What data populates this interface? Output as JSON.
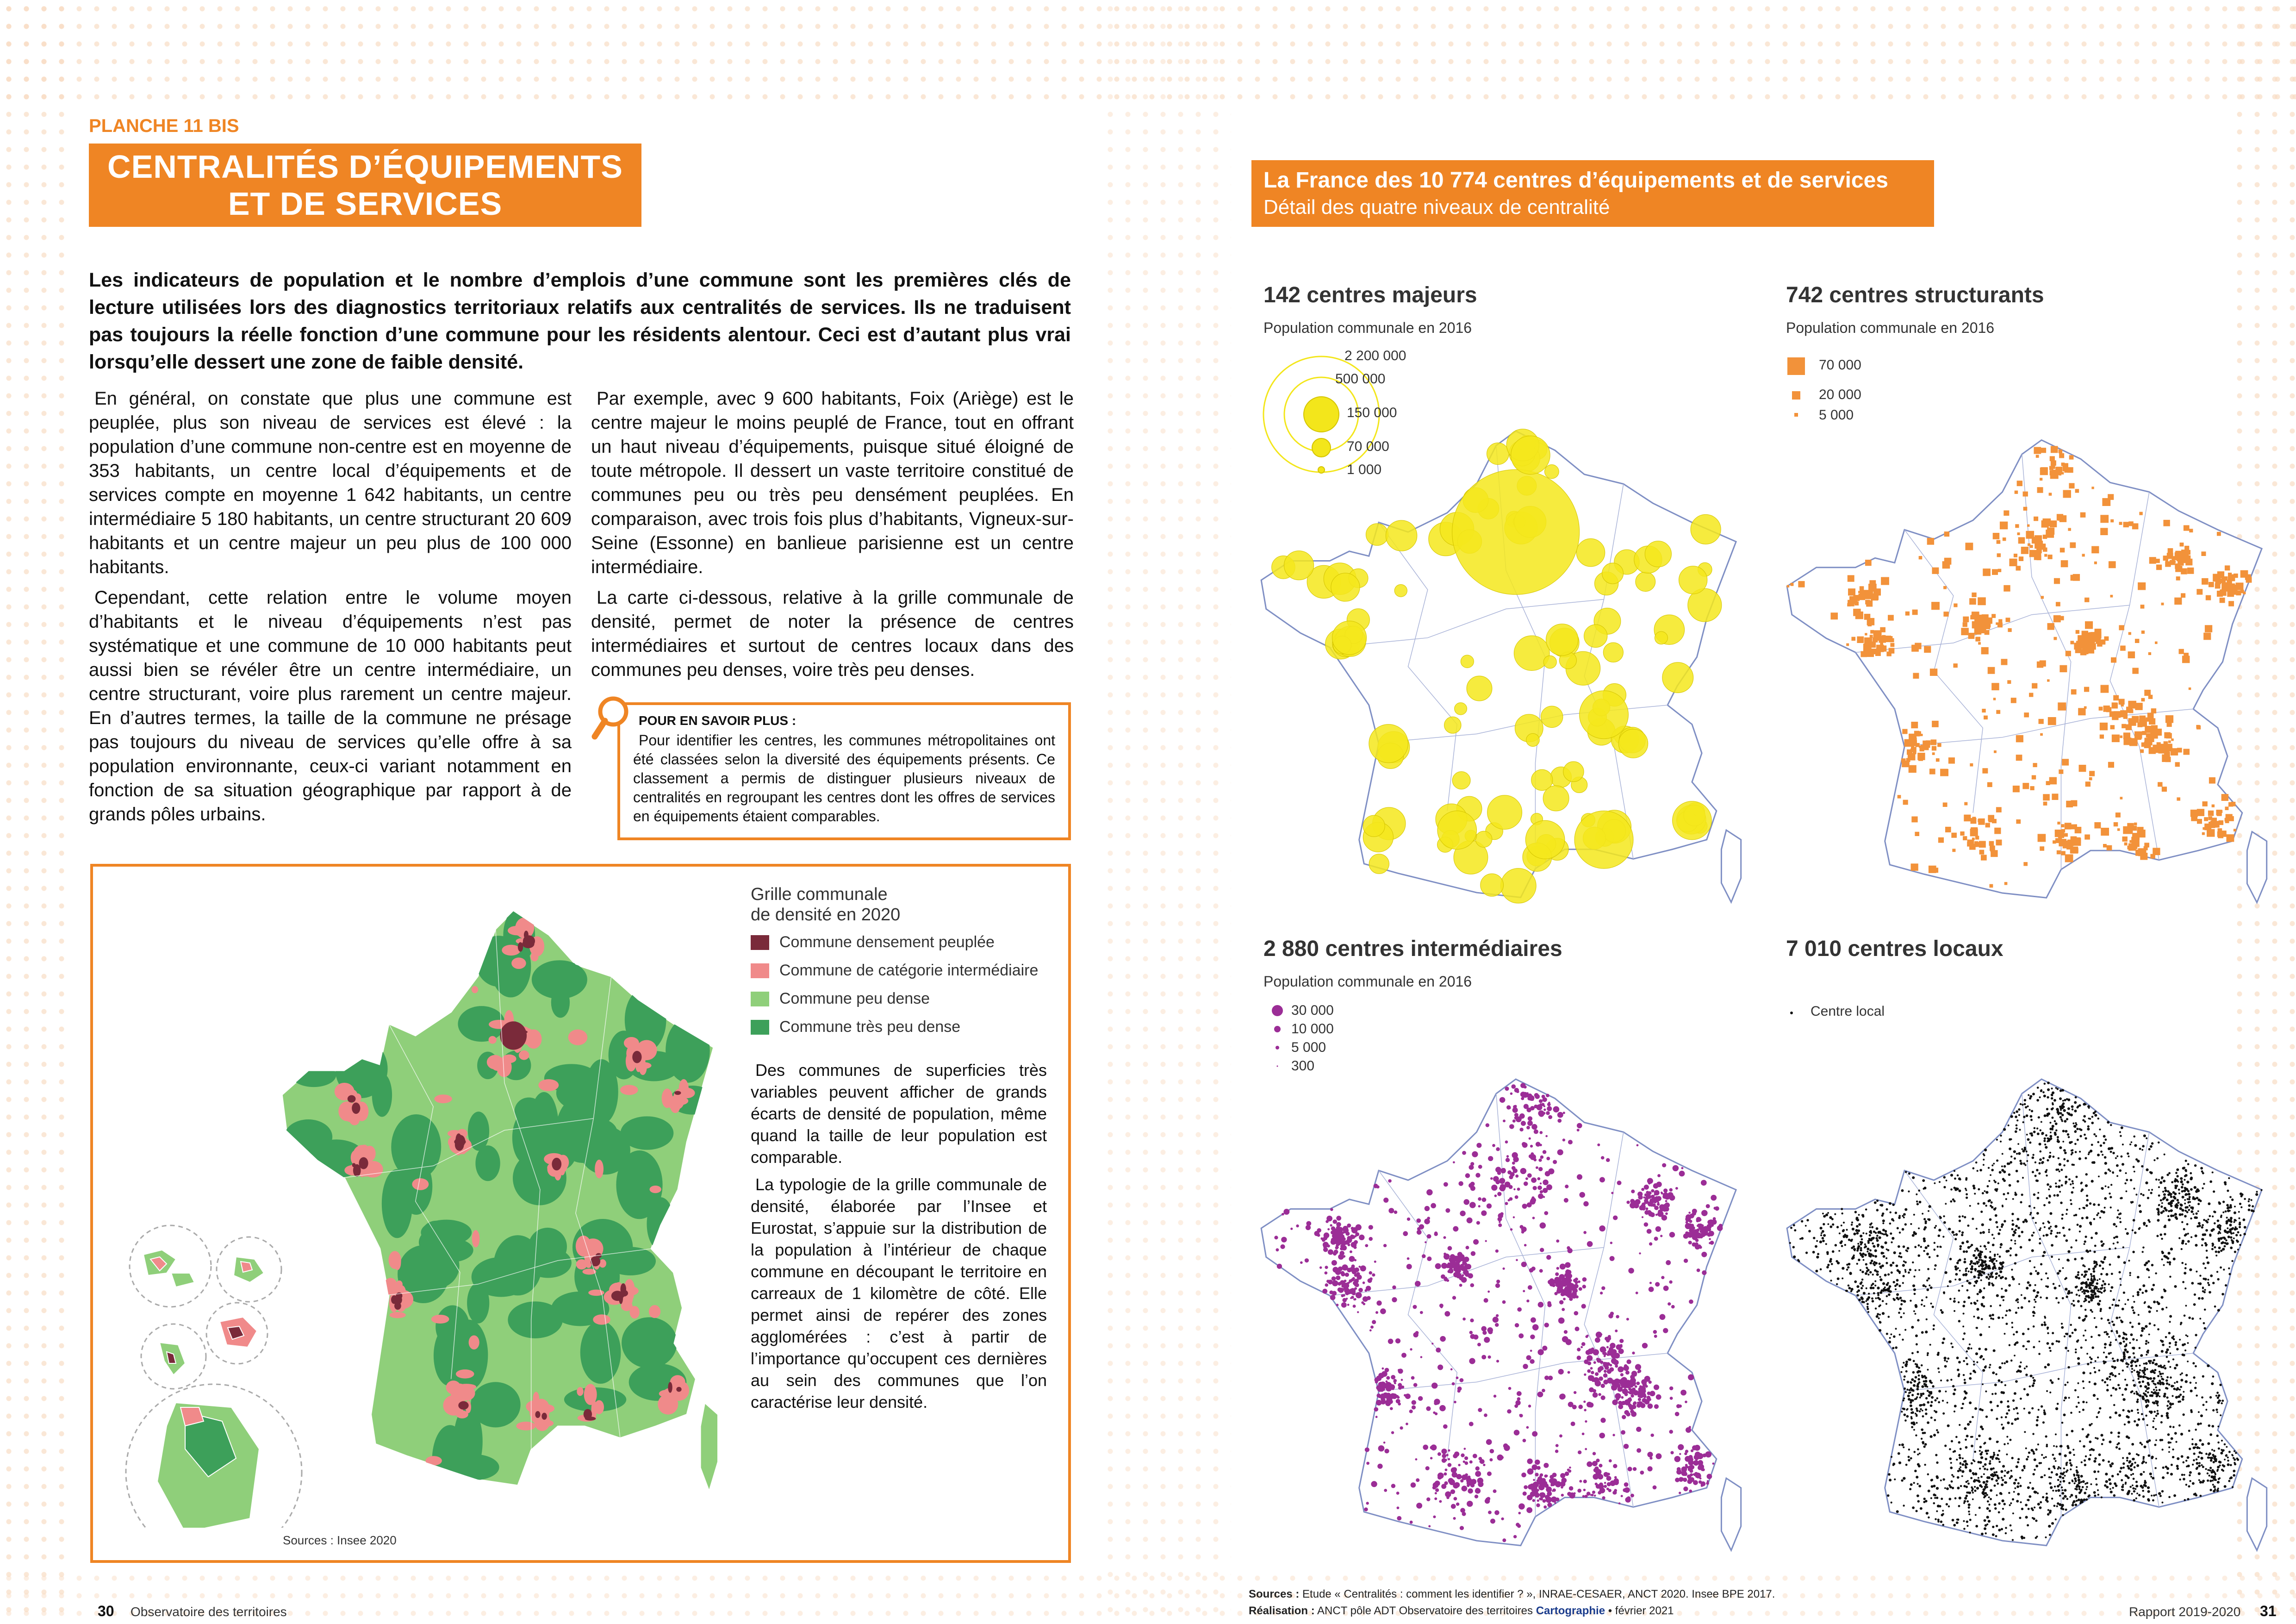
{
  "left_page": {
    "planche": "PLANCHE 11 BIS",
    "title": [
      "CENTRALITÉS D’ÉQUIPEMENTS",
      "ET DE SERVICES"
    ],
    "lead": "Les indicateurs de population et le nombre d’emplois d’une commune sont les premières clés de lecture utilisées lors des diagnostics territoriaux relatifs aux centralités de services. Ils ne traduisent pas toujours la réelle fonction d’une commune pour les résidents alentour. Ceci est d’autant plus vrai lorsqu’elle dessert une zone de faible densité.",
    "column_1": [
      "En général, on constate que plus une commune est peuplée, plus son niveau de services est élevé : la population d’une commune non-centre est en moyenne de 353 habitants, un centre local d’équipements et de services compte en moyenne 1 642 habitants, un centre intermédiaire 5 180 habitants, un centre structurant 20 609 habitants et un centre majeur un peu plus de 100 000 habitants.",
      "Cependant, cette relation entre le volume moyen d’habitants et le niveau d’équipements n’est pas systématique et une commune de 10 000 habitants peut aussi bien se révéler être un centre intermédiaire, un centre structurant, voire plus rarement un centre majeur. En d’autres termes, la taille de la commune ne présage pas toujours du niveau de services qu’elle offre à sa population environnante, ceux-ci variant notamment en fonction de sa situation géographique par rapport à de grands pôles urbains."
    ],
    "column_2": [
      "Par exemple, avec 9 600 habitants, Foix (Ariège) est le centre majeur le moins peuplé de France, tout en offrant un haut niveau d’équipements, puisque situé éloigné de toute métropole. Il dessert un vaste territoire constitué de communes peu ou très peu densément peuplées. En comparaison, avec trois fois plus d’habitants, Vigneux-sur-Seine (Essonne) en banlieue parisienne est un centre intermédiaire.",
      "La carte ci-dessous, relative à la grille communale de densité, permet de noter la présence de centres intermédiaires et surtout de centres locaux dans des communes peu denses, voire très peu denses."
    ],
    "info_box": {
      "title": "POUR EN SAVOIR PLUS :",
      "text": "Pour identifier les centres, les communes métropolitaines ont été classées selon la diversité des équipements présents. Ce classement a permis de distinguer plusieurs niveaux de centralités en regroupant les centres dont les offres de services en équipements étaient comparables."
    },
    "density_map": {
      "legend_title": [
        "Grille communale",
        "de densité en 2020"
      ],
      "legend": [
        "Commune densement peuplée",
        "Commune de catégorie intermédiaire",
        "Commune peu dense",
        "Commune très peu dense"
      ],
      "text": [
        "Des communes de superficies très variables peuvent afficher de grands écarts de densité de population, même quand la taille de leur population est comparable.",
        "La typologie de la grille communale de densité, élaborée par l’Insee et Eurostat, s’appuie sur la distribution de la population à l’intérieur de chaque commune en découpant le territoire en carreaux de 1 kilomètre de côté. Elle permet ainsi de repérer des zones agglomérées : c’est à partir de l’importance qu’occupent ces dernières au sein des communes que l’on caractérise leur densité."
      ],
      "source": "Sources : Insee 2020"
    },
    "footer": {
      "page": "30",
      "publication": "Observatoire des territoires"
    }
  },
  "right_page": {
    "header": {
      "title": "La France des 10 774 centres d’équipements et de services",
      "subtitle": "Détail des quatre niveaux de centralité"
    },
    "panels": [
      {
        "title": "142 centres majeurs",
        "subtitle": "Population communale en 2016",
        "legend": [
          "2 200 000",
          "500 000",
          "150 000",
          "70 000",
          "1 000"
        ]
      },
      {
        "title": "742 centres structurants",
        "subtitle": "Population communale en 2016",
        "legend": [
          "70 000",
          "20 000",
          "5 000"
        ]
      },
      {
        "title": "2 880 centres intermédiaires",
        "subtitle": "Population communale en 2016",
        "legend": [
          "30 000",
          "10 000",
          "5 000",
          "300"
        ]
      },
      {
        "title": "7 010 centres locaux",
        "legend": [
          "Centre local"
        ]
      }
    ],
    "sources": {
      "label": "Sources :",
      "text": "Etude « Centralités : comment les identifier ? », INRAE-CESAER, ANCT 2020. Insee BPE 2017."
    },
    "credits": {
      "label": "Réalisation :",
      "text": "ANCT pôle ADT Observatoire des territoires",
      "highlight": "Cartographie",
      "date": "• février 2021"
    },
    "footer": {
      "publication": "Rapport 2019-2020",
      "page": "31"
    }
  }
}
